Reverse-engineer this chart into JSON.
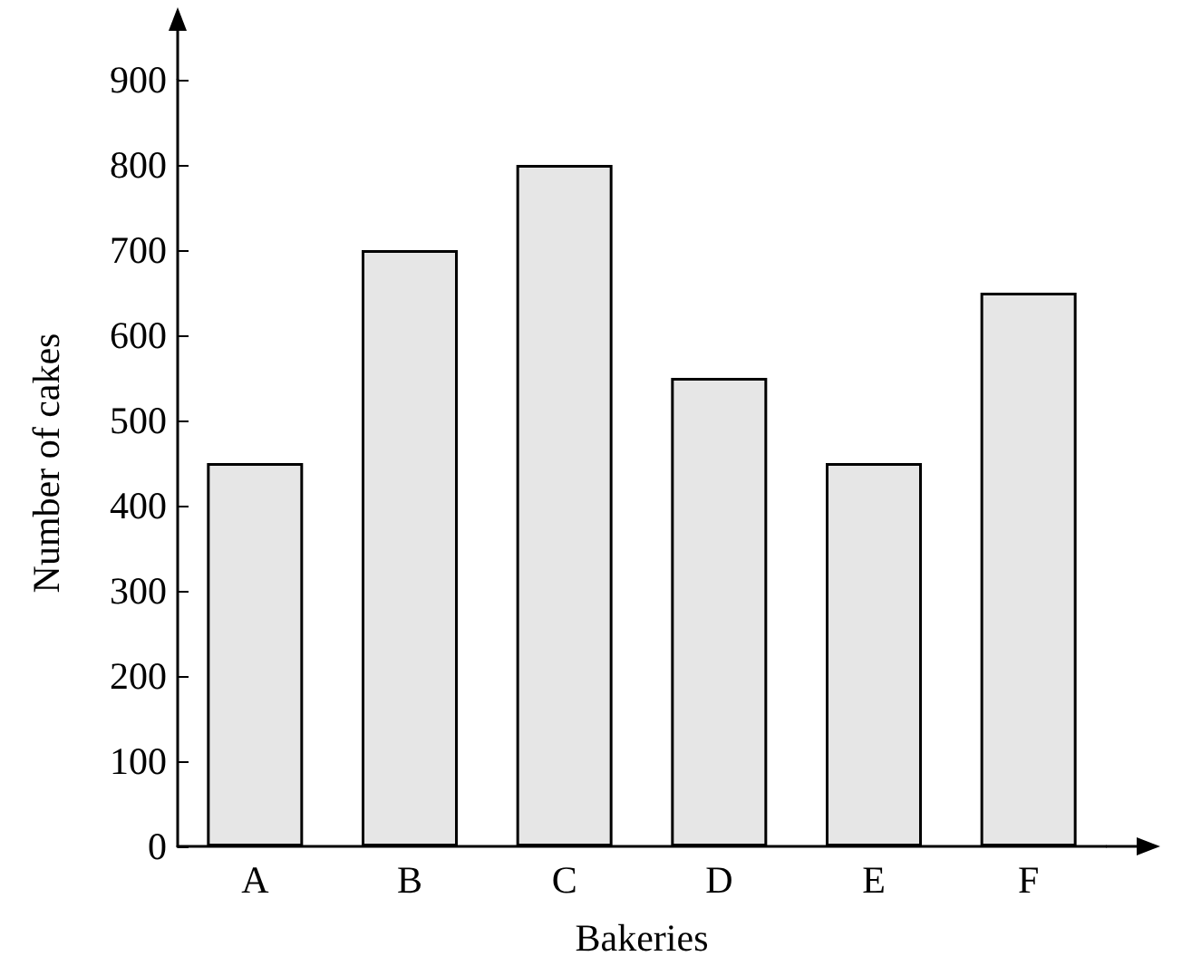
{
  "chart_data": {
    "type": "bar",
    "xlabel": "Bakeries",
    "ylabel": "Number of cakes",
    "categories": [
      "A",
      "B",
      "C",
      "D",
      "E",
      "F"
    ],
    "values": [
      450,
      700,
      800,
      550,
      450,
      650
    ],
    "color": "#e6e6e6",
    "ylim": [
      0,
      900
    ],
    "yticks": [
      0,
      100,
      200,
      300,
      400,
      500,
      600,
      700,
      800,
      900
    ],
    "grid": false
  }
}
